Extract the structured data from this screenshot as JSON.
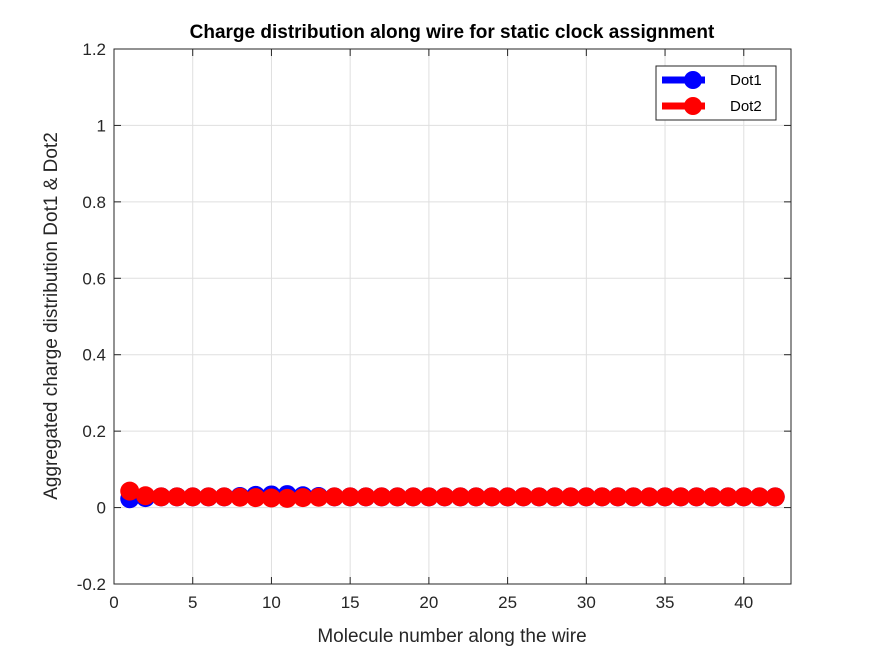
{
  "chart_data": {
    "type": "line",
    "title": "Charge distribution along wire for static clock assignment",
    "xlabel": "Molecule number along the wire",
    "ylabel": "Aggregated charge distribution Dot1 & Dot2",
    "xlim": [
      0,
      43
    ],
    "ylim": [
      -0.2,
      1.2
    ],
    "x_ticks": [
      0,
      5,
      10,
      15,
      20,
      25,
      30,
      35,
      40
    ],
    "y_ticks": [
      -0.2,
      0,
      0.2,
      0.4,
      0.6,
      0.8,
      1,
      1.2
    ],
    "x_tick_labels": [
      "0",
      "5",
      "10",
      "15",
      "20",
      "25",
      "30",
      "35",
      "40"
    ],
    "y_tick_labels": [
      "-0.2",
      "0",
      "0.2",
      "0.4",
      "0.6",
      "0.8",
      "1",
      "1.2"
    ],
    "grid": true,
    "legend_position": "top-right",
    "x": [
      1,
      2,
      3,
      4,
      5,
      6,
      7,
      8,
      9,
      10,
      11,
      12,
      13,
      14,
      15,
      16,
      17,
      18,
      19,
      20,
      21,
      22,
      23,
      24,
      25,
      26,
      27,
      28,
      29,
      30,
      31,
      32,
      33,
      34,
      35,
      36,
      37,
      38,
      39,
      40,
      41,
      42
    ],
    "series": [
      {
        "name": "Dot1",
        "color": "#0000ff",
        "values": [
          0.023,
          0.026,
          0.028,
          0.028,
          0.028,
          0.028,
          0.028,
          0.029,
          0.032,
          0.033,
          0.034,
          0.031,
          0.029,
          0.028,
          0.028,
          0.028,
          0.028,
          0.028,
          0.028,
          0.028,
          0.028,
          0.028,
          0.028,
          0.028,
          0.028,
          0.028,
          0.028,
          0.028,
          0.028,
          0.028,
          0.028,
          0.028,
          0.028,
          0.028,
          0.028,
          0.028,
          0.028,
          0.028,
          0.028,
          0.028,
          0.028,
          0.028
        ]
      },
      {
        "name": "Dot2",
        "color": "#ff0000",
        "values": [
          0.043,
          0.031,
          0.028,
          0.028,
          0.028,
          0.028,
          0.028,
          0.027,
          0.026,
          0.025,
          0.024,
          0.026,
          0.027,
          0.028,
          0.028,
          0.028,
          0.028,
          0.028,
          0.028,
          0.028,
          0.028,
          0.028,
          0.028,
          0.028,
          0.028,
          0.028,
          0.028,
          0.028,
          0.028,
          0.028,
          0.028,
          0.028,
          0.028,
          0.028,
          0.028,
          0.028,
          0.028,
          0.028,
          0.028,
          0.028,
          0.028,
          0.028
        ]
      }
    ]
  }
}
